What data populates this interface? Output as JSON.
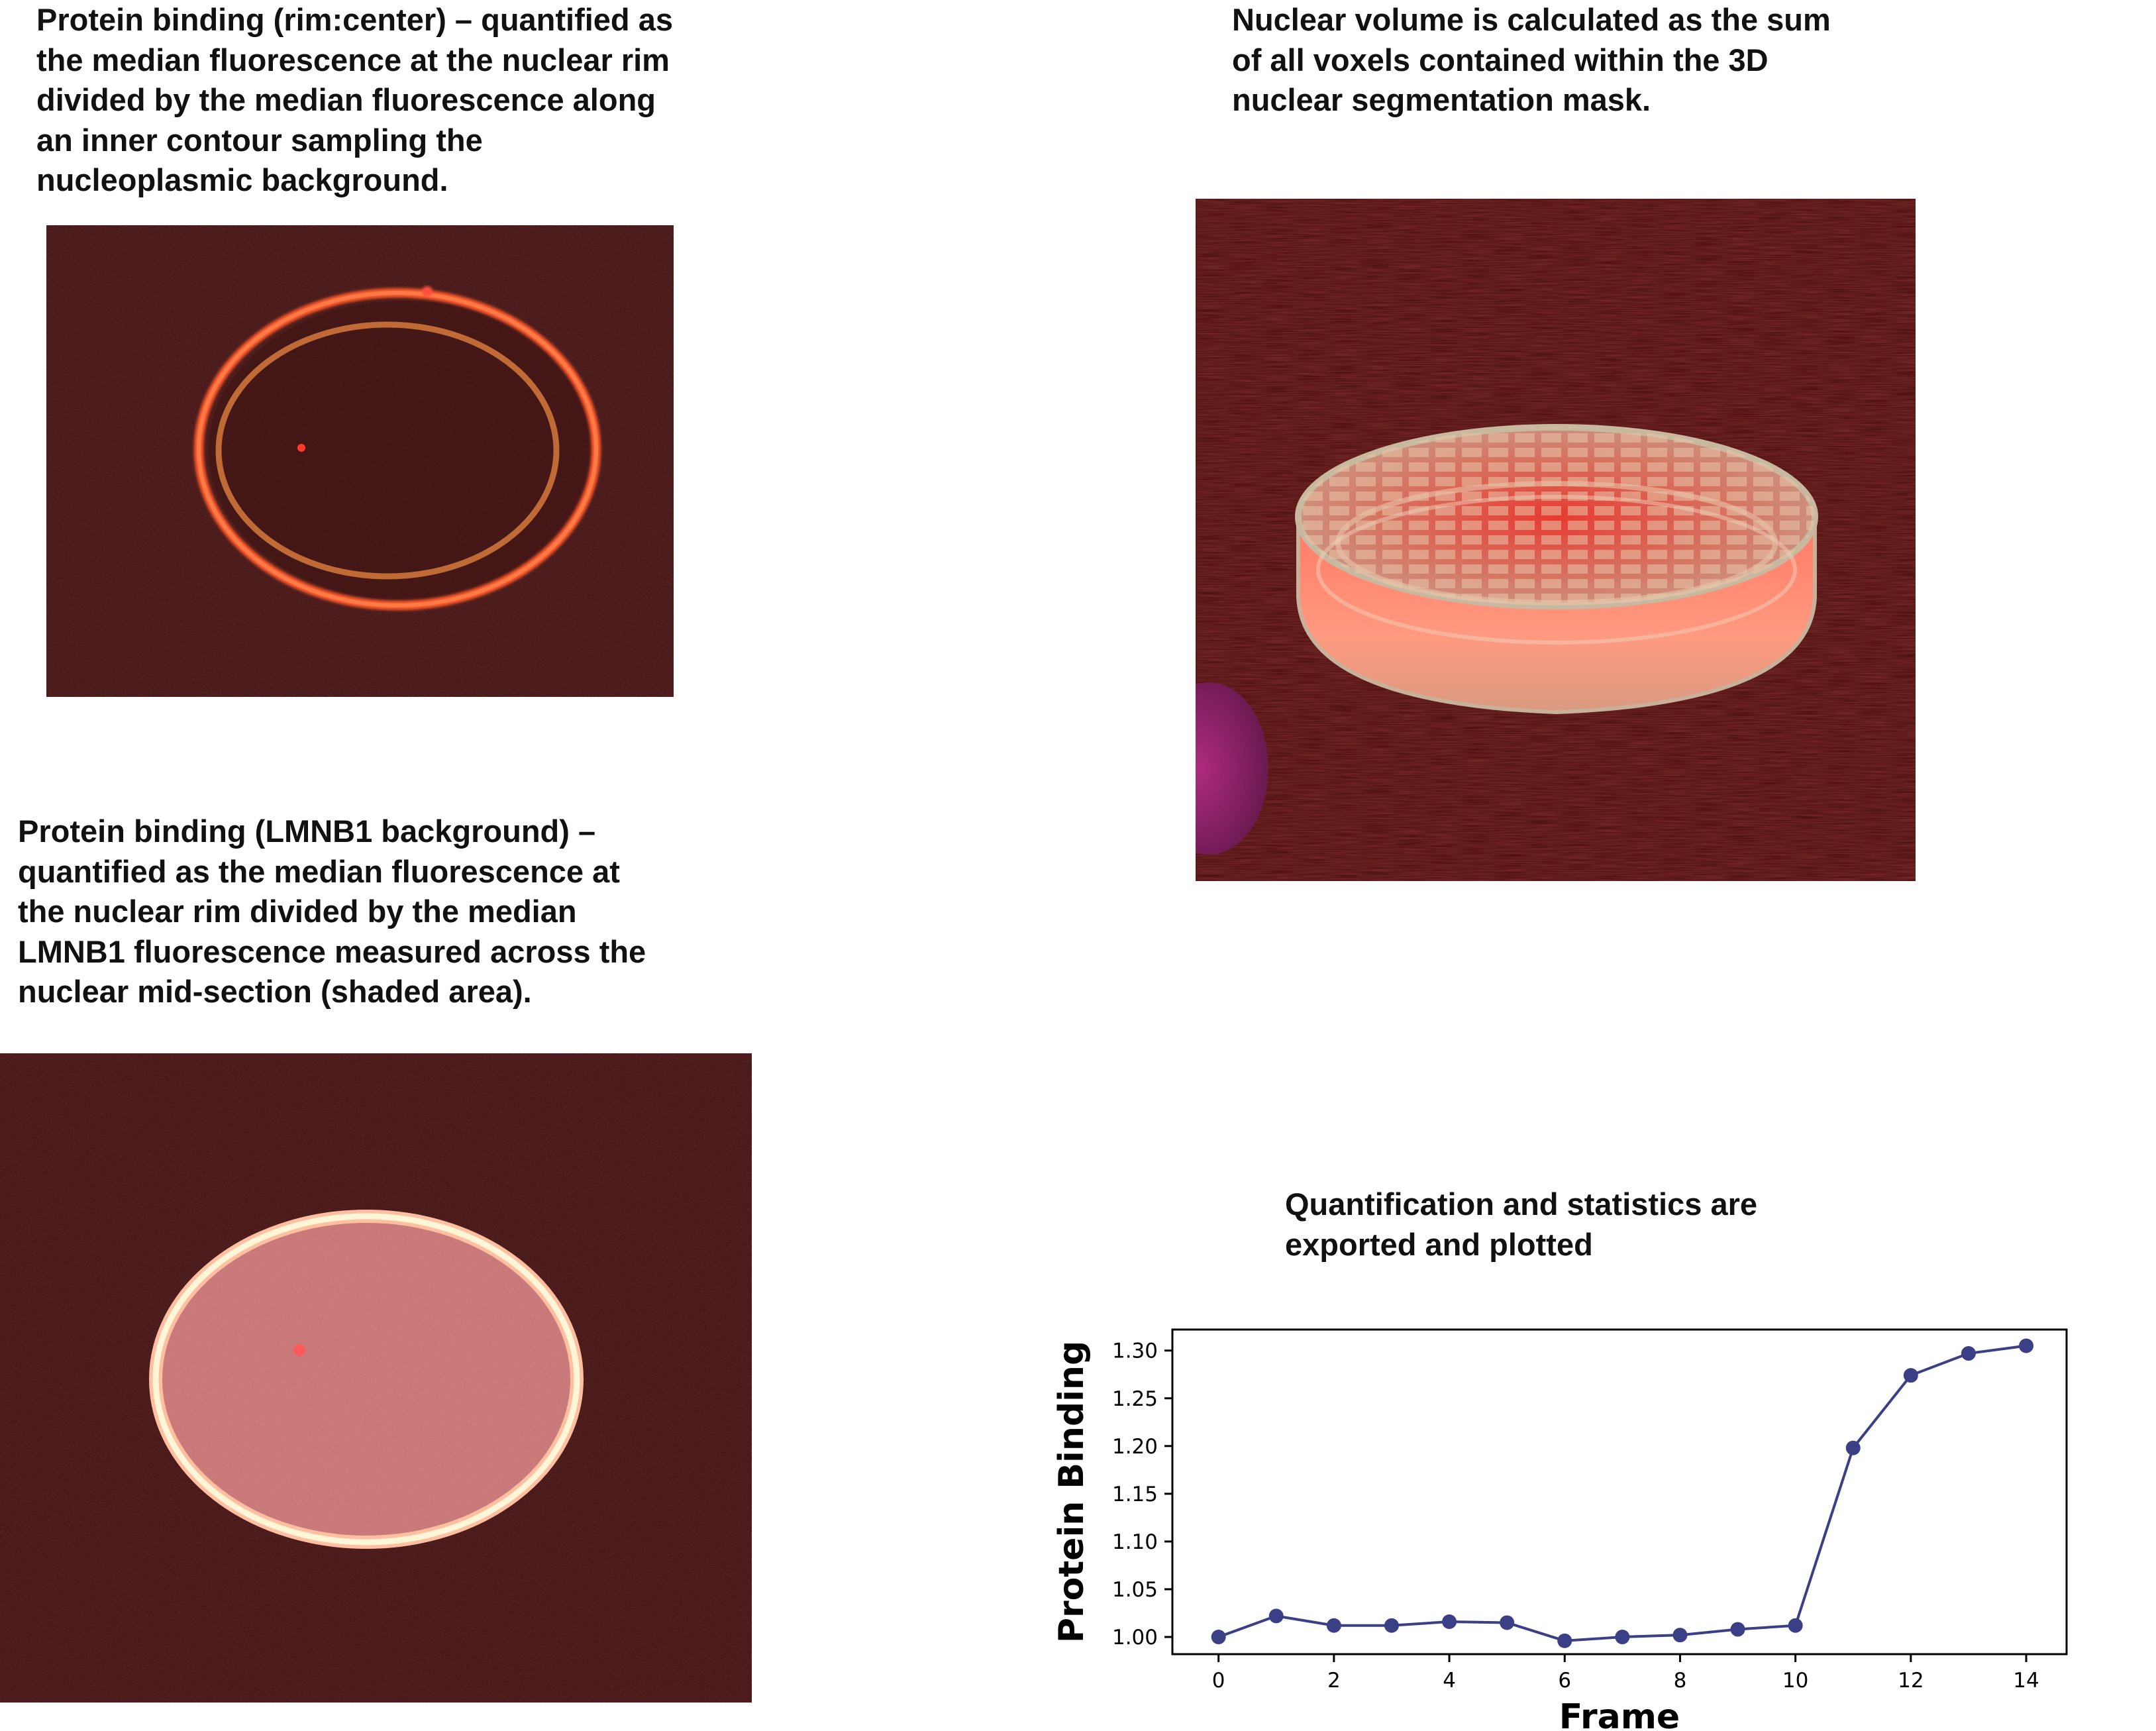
{
  "panels": {
    "rim_center": {
      "caption_lines": [
        "Protein binding (rim:center) – quantified as",
        "the median fluorescence at the nuclear rim",
        "divided by the median fluorescence along",
        "an inner contour sampling the",
        "nucleoplasmic background."
      ]
    },
    "volume": {
      "caption_lines": [
        "Nuclear volume is calculated as the sum",
        "of all voxels contained within the 3D",
        "nuclear segmentation mask."
      ]
    },
    "lmnb1": {
      "caption_lines": [
        "Protein binding (LMNB1 background) –",
        "quantified as the median fluorescence at",
        "the nuclear rim divided by the median",
        "LMNB1 fluorescence measured across the",
        "nuclear mid-section (shaded area)."
      ]
    },
    "stats": {
      "caption_lines": [
        "Quantification and statistics are",
        "exported and plotted"
      ]
    }
  },
  "colors": {
    "line": "#3b3f86",
    "micro_bg": "#3a0c0c",
    "rim": "#ff5a2a",
    "inner_contour": "#c06a35"
  },
  "chart_data": {
    "type": "line",
    "xlabel": "Frame",
    "ylabel": "Protein Binding",
    "x": [
      0,
      1,
      2,
      3,
      4,
      5,
      6,
      7,
      8,
      9,
      10,
      11,
      12,
      13,
      14
    ],
    "series": [
      {
        "values": [
          1.0,
          1.022,
          1.012,
          1.012,
          1.016,
          1.015,
          0.996,
          1.0,
          1.002,
          1.008,
          1.012,
          1.198,
          1.274,
          1.297,
          1.305
        ]
      }
    ],
    "xticks": [
      0,
      2,
      4,
      6,
      8,
      10,
      12,
      14
    ],
    "yticks": [
      1.0,
      1.05,
      1.1,
      1.15,
      1.2,
      1.25,
      1.3
    ],
    "xlim": [
      -0.8,
      14.7
    ],
    "ylim": [
      0.982,
      1.322
    ],
    "grid": false
  }
}
